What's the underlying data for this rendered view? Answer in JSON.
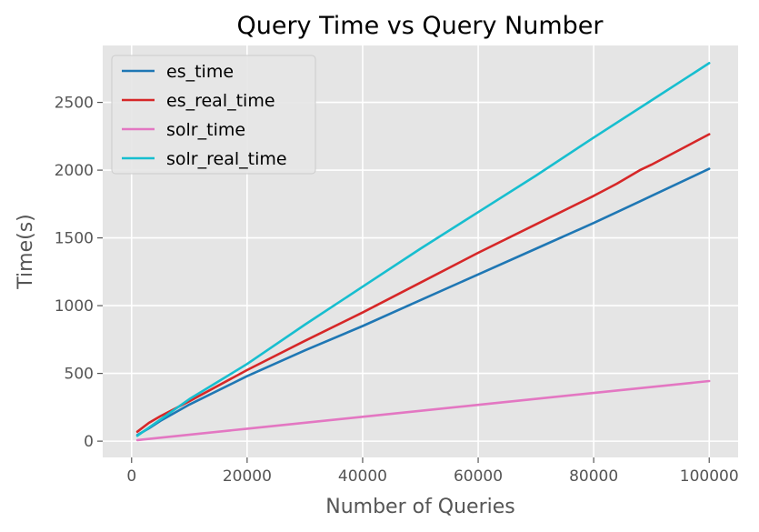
{
  "chart_data": {
    "type": "line",
    "title": "Query Time vs Query Number",
    "xlabel": "Number of Queries",
    "ylabel": "Time(s)",
    "xlim": [
      -5000,
      105000
    ],
    "ylim": [
      -120,
      2920
    ],
    "xticks": [
      0,
      20000,
      40000,
      60000,
      80000,
      100000
    ],
    "xtick_labels": [
      "0",
      "20000",
      "40000",
      "60000",
      "80000",
      "100000"
    ],
    "yticks": [
      0,
      500,
      1000,
      1500,
      2000,
      2500
    ],
    "ytick_labels": [
      "0",
      "500",
      "1000",
      "1500",
      "2000",
      "2500"
    ],
    "grid": true,
    "legend_position": "top-left",
    "series": [
      {
        "name": "es_time",
        "color": "#1f77b4",
        "x": [
          1000,
          3000,
          5000,
          10000,
          20000,
          30000,
          40000,
          50000,
          60000,
          70000,
          80000,
          84000,
          88000,
          90000,
          100000
        ],
        "values": [
          45,
          95,
          150,
          270,
          480,
          670,
          850,
          1040,
          1230,
          1420,
          1610,
          1690,
          1770,
          1810,
          2010
        ]
      },
      {
        "name": "es_real_time",
        "color": "#d62728",
        "x": [
          1000,
          3000,
          5000,
          10000,
          20000,
          30000,
          40000,
          50000,
          60000,
          70000,
          80000,
          84000,
          88000,
          90000,
          100000
        ],
        "values": [
          70,
          135,
          185,
          295,
          525,
          740,
          950,
          1170,
          1390,
          1600,
          1810,
          1900,
          2000,
          2040,
          2265
        ]
      },
      {
        "name": "solr_time",
        "color": "#e377c2",
        "x": [
          1000,
          20000,
          40000,
          60000,
          80000,
          100000
        ],
        "values": [
          8,
          92,
          180,
          268,
          356,
          444
        ]
      },
      {
        "name": "solr_real_time",
        "color": "#17becf",
        "x": [
          1000,
          5000,
          10000,
          20000,
          30000,
          40000,
          50000,
          60000,
          70000,
          80000,
          90000,
          100000
        ],
        "values": [
          40,
          160,
          310,
          570,
          860,
          1140,
          1420,
          1690,
          1960,
          2240,
          2515,
          2790
        ]
      }
    ]
  }
}
